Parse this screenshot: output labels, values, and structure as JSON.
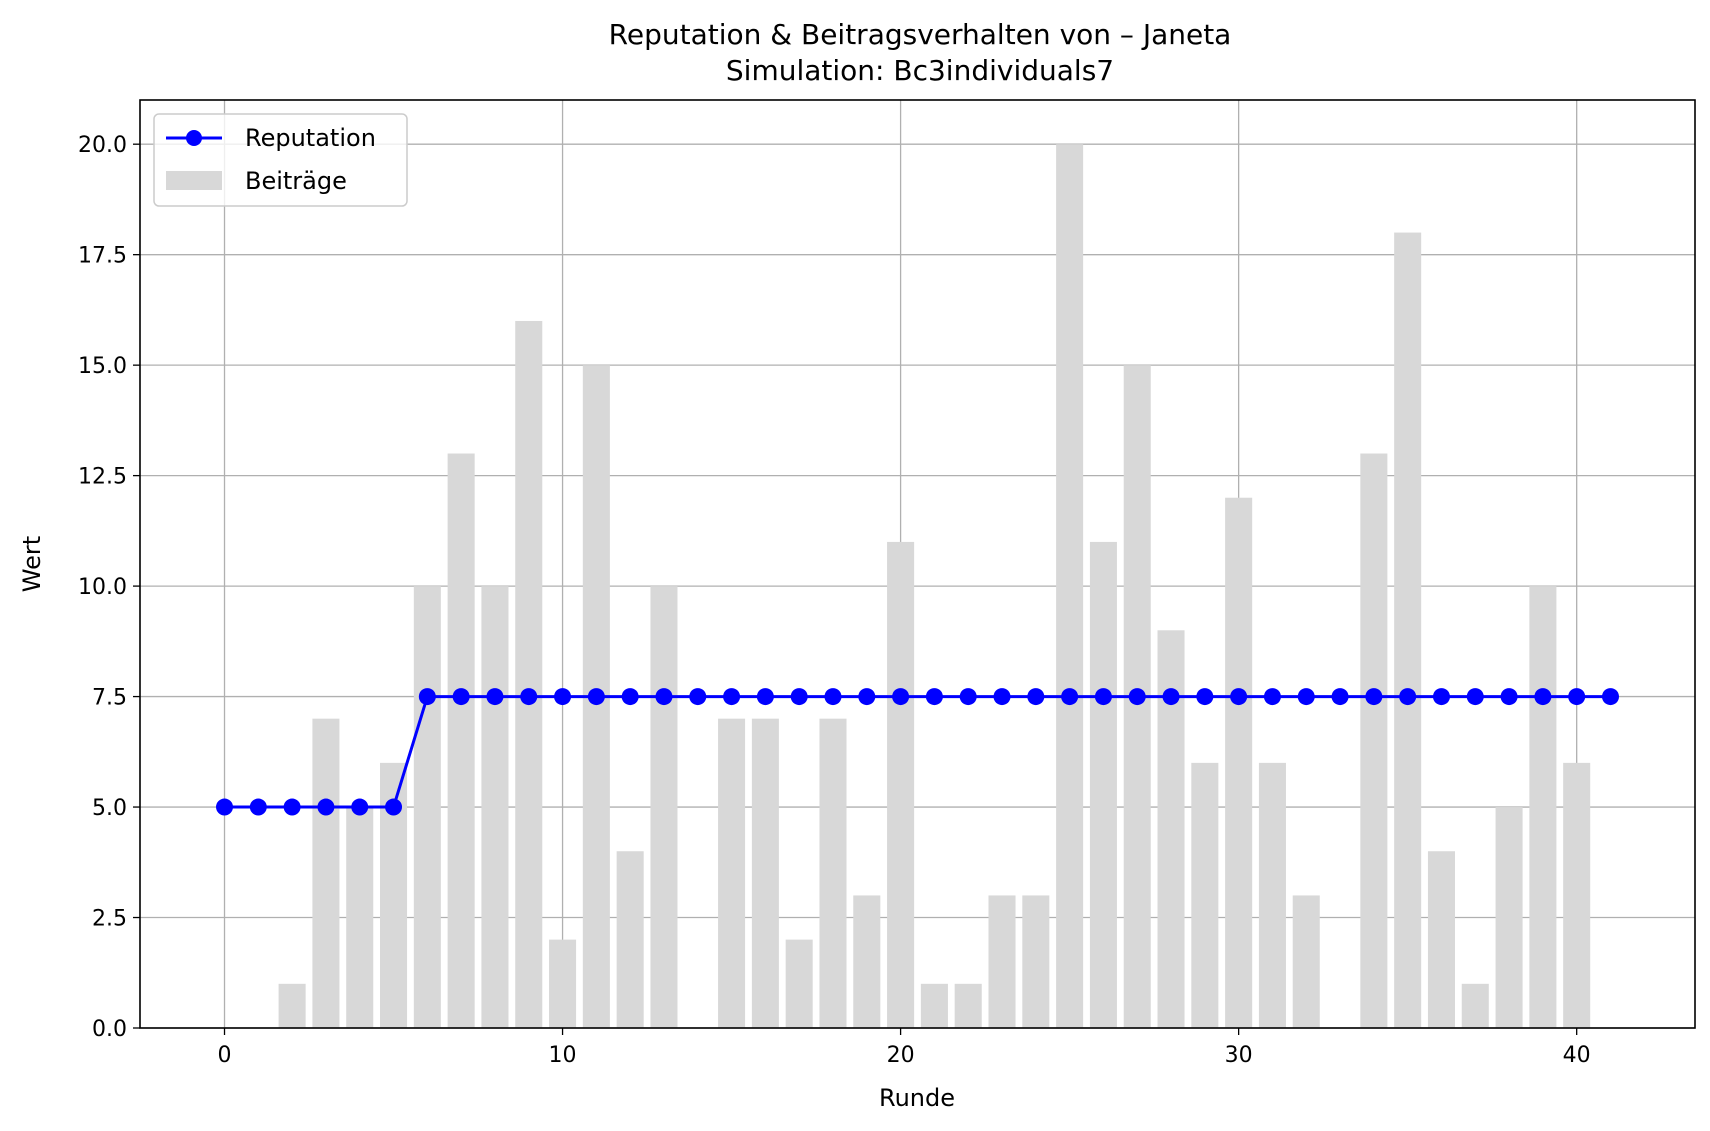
{
  "chart_data": {
    "type": "bar",
    "title": "Reputation & Beitragsverhalten von – Janeta",
    "subtitle": "Simulation: Bc3individuals7",
    "xlabel": "Runde",
    "ylabel": "Wert",
    "xlim": [
      -2.5,
      43.5
    ],
    "ylim": [
      0,
      21
    ],
    "x_ticks": [
      0,
      10,
      20,
      30,
      40
    ],
    "x_tick_labels": [
      "0",
      "10",
      "20",
      "30",
      "40"
    ],
    "y_ticks": [
      0,
      2.5,
      5,
      7.5,
      10,
      12.5,
      15,
      17.5,
      20
    ],
    "y_tick_labels": [
      "0.0",
      "2.5",
      "5.0",
      "7.5",
      "10.0",
      "12.5",
      "15.0",
      "17.5",
      "20.0"
    ],
    "grid": true,
    "legend_position": "upper-left",
    "x": [
      0,
      1,
      2,
      3,
      4,
      5,
      6,
      7,
      8,
      9,
      10,
      11,
      12,
      13,
      14,
      15,
      16,
      17,
      18,
      19,
      20,
      21,
      22,
      23,
      24,
      25,
      26,
      27,
      28,
      29,
      30,
      31,
      32,
      33,
      34,
      35,
      36,
      37,
      38,
      39,
      40,
      41
    ],
    "series": [
      {
        "name": "Reputation",
        "kind": "line",
        "color": "#0000ff",
        "values": [
          5,
          5,
          5,
          5,
          5,
          5,
          7.5,
          7.5,
          7.5,
          7.5,
          7.5,
          7.5,
          7.5,
          7.5,
          7.5,
          7.5,
          7.5,
          7.5,
          7.5,
          7.5,
          7.5,
          7.5,
          7.5,
          7.5,
          7.5,
          7.5,
          7.5,
          7.5,
          7.5,
          7.5,
          7.5,
          7.5,
          7.5,
          7.5,
          7.5,
          7.5,
          7.5,
          7.5,
          7.5,
          7.5,
          7.5,
          7.5
        ]
      },
      {
        "name": "Beiträge",
        "kind": "bar",
        "color": "#d8d8d8",
        "values": [
          0,
          0,
          1,
          7,
          5,
          6,
          10,
          13,
          10,
          16,
          2,
          15,
          4,
          10,
          0,
          7,
          7,
          2,
          7,
          3,
          11,
          1,
          1,
          3,
          3,
          20,
          11,
          15,
          9,
          6,
          12,
          6,
          3,
          0,
          13,
          18,
          4,
          1,
          5,
          10,
          6,
          0
        ]
      }
    ]
  }
}
